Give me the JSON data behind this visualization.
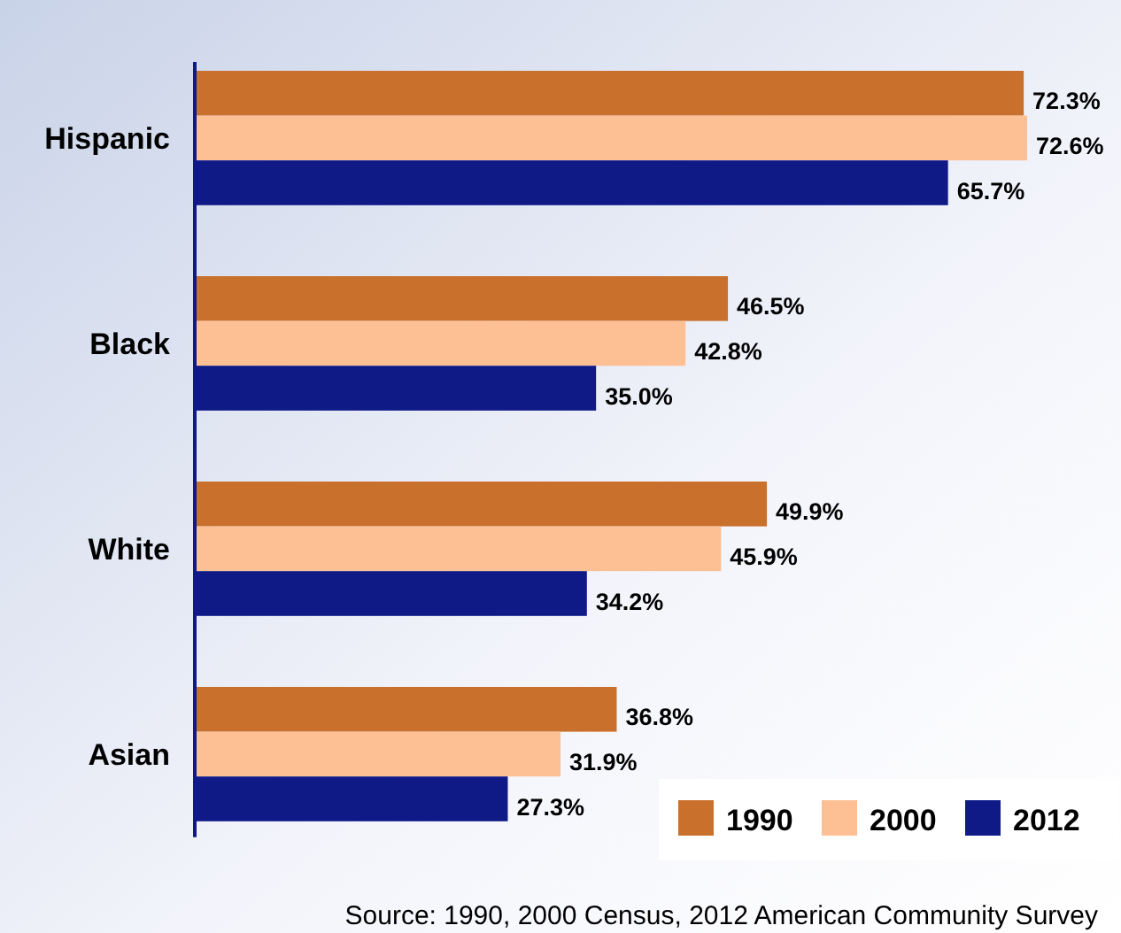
{
  "chart_data": {
    "type": "bar",
    "orientation": "horizontal",
    "categories": [
      "Hispanic",
      "Black",
      "White",
      "Asian"
    ],
    "series": [
      {
        "name": "1990",
        "color": "#c8702c",
        "values": [
          72.3,
          46.5,
          49.9,
          36.8
        ],
        "value_labels": [
          "72.3%",
          "46.5%",
          "49.9%",
          "36.8%"
        ]
      },
      {
        "name": "2000",
        "color": "#fdbf94",
        "values": [
          72.6,
          42.8,
          45.9,
          31.9
        ],
        "value_labels": [
          "72.6%",
          "42.8%",
          "45.9%",
          "31.9%"
        ]
      },
      {
        "name": "2012",
        "color": "#0f1a87",
        "values": [
          65.7,
          35.0,
          34.2,
          27.3
        ],
        "value_labels": [
          "65.7%",
          "35.0%",
          "34.2%",
          "27.3%"
        ]
      }
    ],
    "legend": "bottom right",
    "grid": false,
    "annotations": [
      "Source:  1990, 2000 Census, 2012 American Community Survey"
    ]
  }
}
